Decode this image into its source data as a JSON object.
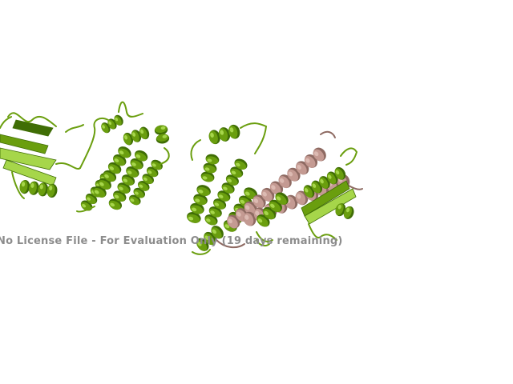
{
  "scene": {
    "background": "#ffffff",
    "colors": {
      "chain_a": "#6a9e0e",
      "chain_a_light": "#a6d64a",
      "chain_a_dark": "#3f6d05",
      "chain_b": "#c49a92",
      "chain_b_dark": "#8e6a62"
    }
  },
  "watermark": {
    "text": "No License File - For Evaluation Only (19 days remaining)",
    "color": "#8c8c8c"
  }
}
